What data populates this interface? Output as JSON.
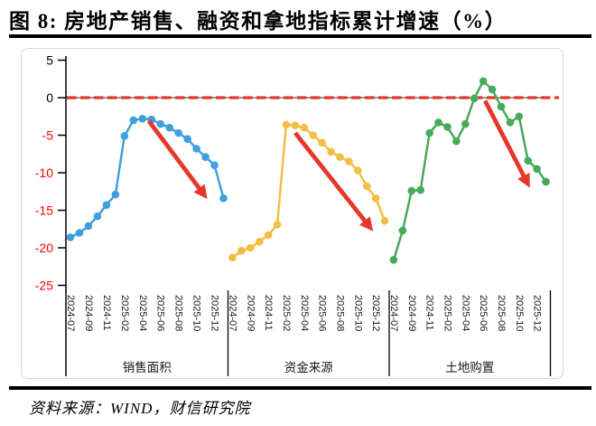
{
  "figure": {
    "title": "图 8: 房地产销售、融资和拿地指标累计增速（%）",
    "source": "资料来源：WIND，财信研究院"
  },
  "chart_data": {
    "type": "line",
    "title": "图 8: 房地产销售、融资和拿地指标累计增速（%）",
    "unit": "%",
    "y_ticks": [
      5,
      0,
      -5,
      -10,
      -15,
      -20,
      -25
    ],
    "ylim": [
      -26.5,
      5.5
    ],
    "grid": false,
    "legend_position": "none (group labels under x-axis)",
    "zero_reference_line": "solid gray with red dashed overlay",
    "x_tick_labels": [
      "2024-07",
      "2024-09",
      "2024-11",
      "2025-02",
      "2025-04",
      "2025-06",
      "2025-08",
      "2025-10",
      "2025-12"
    ],
    "x_tick_slots": [
      0,
      2,
      4,
      6,
      8,
      10,
      12,
      14,
      16
    ],
    "slots_per_group": 18,
    "groups": [
      {
        "id": "sales",
        "label": "销售面积",
        "color": "#41A0DC",
        "values": [
          -18.6,
          -18.0,
          -17.1,
          -15.8,
          -14.3,
          -12.9,
          -5.1,
          -3.0,
          -2.8,
          -2.9,
          -3.5,
          -4.0,
          -4.7,
          -5.5,
          -6.8,
          -7.9,
          -9.0,
          -13.4
        ]
      },
      {
        "id": "funds",
        "label": "资金来源",
        "color": "#F3BE45",
        "values": [
          -21.3,
          -20.4,
          -20.0,
          -19.2,
          -18.3,
          -16.9,
          -3.6,
          -3.7,
          -4.0,
          -5.0,
          -6.0,
          -7.2,
          -7.9,
          -8.5,
          -9.7,
          -11.8,
          -13.4,
          -16.4
        ]
      },
      {
        "id": "land",
        "label": "土地购置",
        "color": "#47AA5B",
        "values": [
          -21.6,
          -17.7,
          -12.4,
          -12.3,
          -4.7,
          -3.3,
          -3.9,
          -5.8,
          -3.5,
          -0.1,
          2.2,
          1.1,
          -1.2,
          -3.3,
          -2.5,
          -8.4,
          -9.5,
          -11.2
        ]
      }
    ],
    "arrows": [
      {
        "group": 0,
        "from": [
          9.2,
          -3.1
        ],
        "to": [
          15.7,
          -13.5
        ]
      },
      {
        "group": 1,
        "from": [
          7.5,
          -4.7
        ],
        "to": [
          16.2,
          -17.8
        ]
      },
      {
        "group": 2,
        "from": [
          10.7,
          -0.4
        ],
        "to": [
          15.7,
          -12.0
        ]
      }
    ],
    "colors": {
      "arrow": "#E5372A",
      "dashed_zero_line": "#E5372A",
      "solid_zero_line": "#595959",
      "axis": "#000000",
      "tick_label_positive": "#000000",
      "tick_label_negative": "#FF0000",
      "x_label": "#1A1A1A"
    }
  }
}
